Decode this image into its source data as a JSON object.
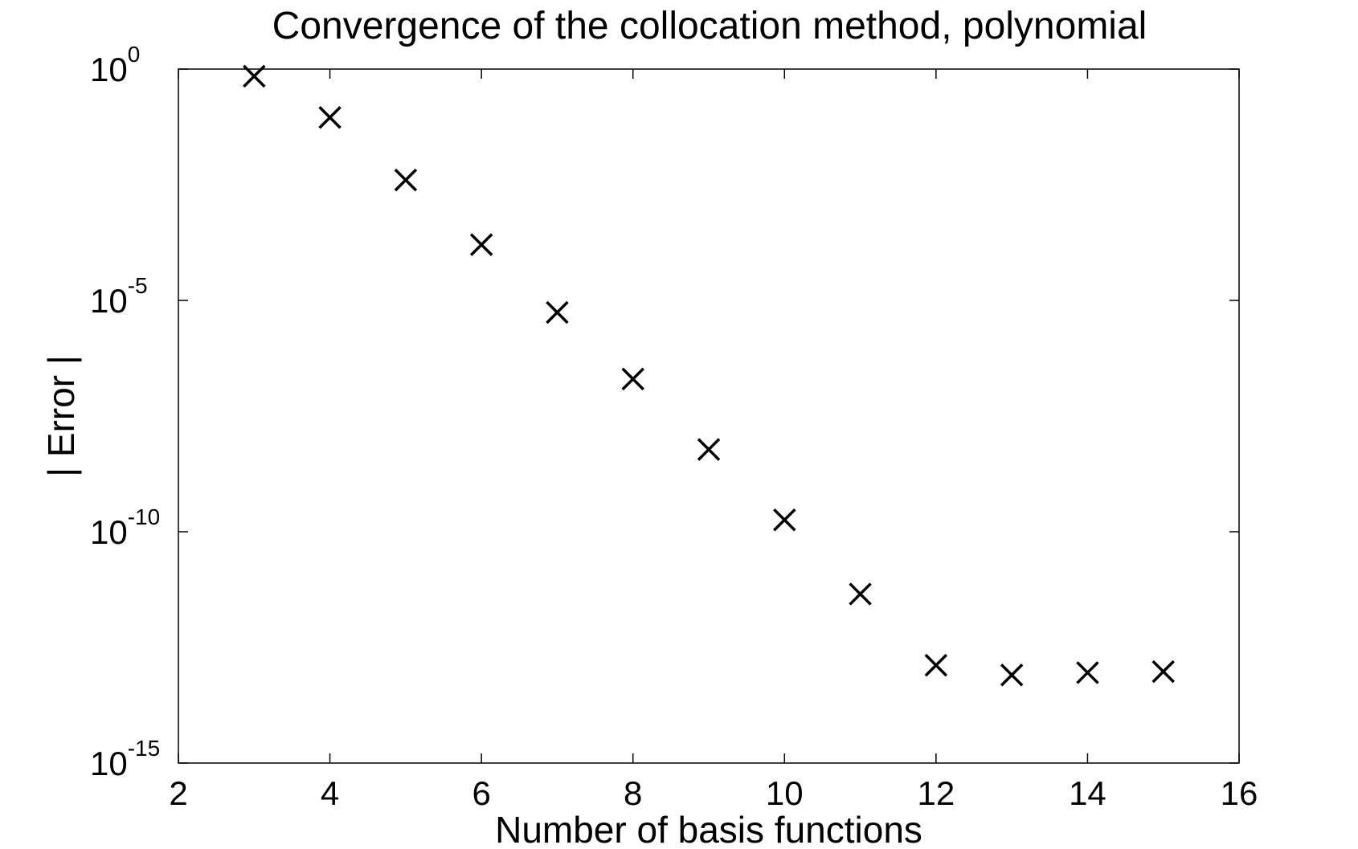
{
  "chart_data": {
    "type": "scatter",
    "title": "Convergence of the collocation method, polynomial",
    "xlabel": "Number of basis functions",
    "ylabel": "| Error |",
    "xlim": [
      2,
      16
    ],
    "ylim_exponent": [
      -15,
      0
    ],
    "yscale": "log",
    "grid": false,
    "marker": "x",
    "colors": {
      "marker": "#000000",
      "axes": "#000000",
      "background": "#ffffff"
    },
    "x_ticks": [
      "2",
      "4",
      "6",
      "8",
      "10",
      "12",
      "14",
      "16"
    ],
    "y_ticks": [
      {
        "base": "10",
        "exp": "0"
      },
      {
        "base": "10",
        "exp": "-5"
      },
      {
        "base": "10",
        "exp": "-10"
      },
      {
        "base": "10",
        "exp": "-15"
      }
    ],
    "series": [
      {
        "x": [
          3,
          4,
          5,
          6,
          7,
          8,
          9,
          10,
          11,
          12,
          13,
          14,
          15
        ],
        "y": [
          0.7,
          0.09,
          0.004,
          0.00016,
          5.5e-06,
          2e-07,
          6e-09,
          1.8e-10,
          4.5e-12,
          1.3e-13,
          8e-14,
          9e-14,
          9.5e-14
        ]
      }
    ]
  }
}
